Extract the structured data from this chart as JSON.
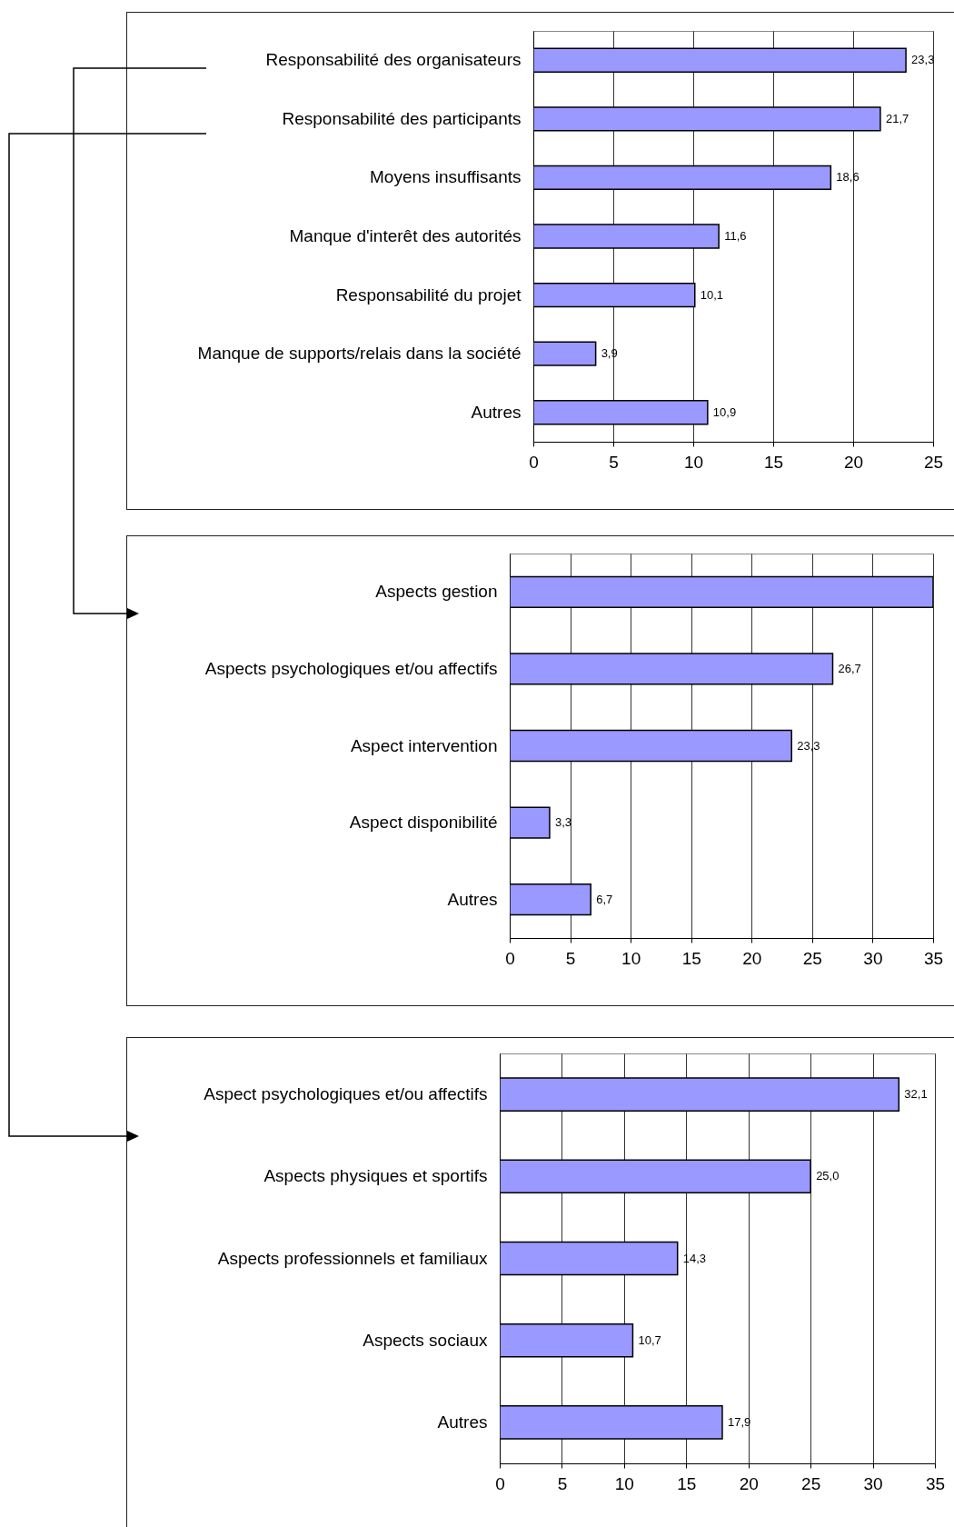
{
  "chart_data": [
    {
      "type": "bar",
      "orientation": "horizontal",
      "categories": [
        "Responsabilité des organisateurs",
        "Responsabilité des participants",
        "Moyens insuffisants",
        "Manque d'interêt des autorités",
        "Responsabilité du projet",
        "Manque de supports/relais dans la société",
        "Autres"
      ],
      "values": [
        23.3,
        21.7,
        18.6,
        11.6,
        10.1,
        3.9,
        10.9
      ],
      "value_labels": [
        "23,3",
        "21,7",
        "18,6",
        "11,6",
        "10,1",
        "3,9",
        "10,9"
      ],
      "color": "#9999ff",
      "xlim": [
        0,
        25
      ],
      "xticks": [
        0,
        5,
        10,
        15,
        20,
        25
      ],
      "grid": "x"
    },
    {
      "type": "bar",
      "orientation": "horizontal",
      "categories": [
        "Aspects gestion",
        "Aspects psychologiques et/ou affectifs",
        "Aspect intervention",
        "Aspect disponibilité",
        "Autres"
      ],
      "values": [
        35,
        26.7,
        23.3,
        3.3,
        6.7
      ],
      "value_labels": [
        null,
        "26,7",
        "23,3",
        "3,3",
        "6,7"
      ],
      "color": "#9999ff",
      "xlim": [
        0,
        35
      ],
      "xticks": [
        0,
        5,
        10,
        15,
        20,
        25,
        30,
        35
      ],
      "grid": "x"
    },
    {
      "type": "bar",
      "orientation": "horizontal",
      "categories": [
        "Aspect psychologiques et/ou affectifs",
        "Aspects physiques et sportifs",
        "Aspects professionnels et familiaux",
        "Aspects sociaux",
        "Autres"
      ],
      "values": [
        32.1,
        25.0,
        14.3,
        10.7,
        17.9
      ],
      "value_labels": [
        "32,1",
        "25,0",
        "14,3",
        "10,7",
        "17,9"
      ],
      "color": "#9999ff",
      "xlim": [
        0,
        35
      ],
      "xticks": [
        0,
        5,
        10,
        15,
        20,
        25,
        30,
        35
      ],
      "grid": "x"
    }
  ]
}
